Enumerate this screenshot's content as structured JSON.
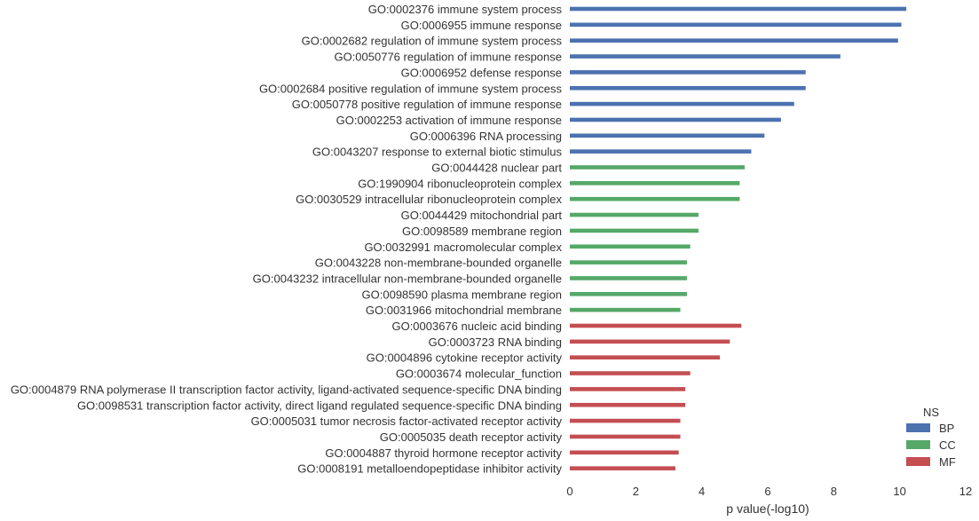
{
  "chart_data": {
    "type": "bar",
    "orientation": "horizontal",
    "xlabel": "p value(-log10)",
    "xlim": [
      0,
      12
    ],
    "xticks": [
      0,
      2,
      4,
      6,
      8,
      10,
      12
    ],
    "grid": false,
    "legend": {
      "title": "NS",
      "placement": "bottom-right",
      "entries": [
        {
          "name": "BP",
          "color": "#4c72b0"
        },
        {
          "name": "CC",
          "color": "#55a868"
        },
        {
          "name": "MF",
          "color": "#c44e52"
        }
      ]
    },
    "categories": [
      "GO:0002376 immune system process",
      "GO:0006955 immune response",
      "GO:0002682 regulation of immune system process",
      "GO:0050776 regulation of immune response",
      "GO:0006952 defense response",
      "GO:0002684 positive regulation of immune system process",
      "GO:0050778 positive regulation of immune response",
      "GO:0002253 activation of immune response",
      "GO:0006396 RNA processing",
      "GO:0043207 response to external biotic stimulus",
      "GO:0044428 nuclear part",
      "GO:1990904 ribonucleoprotein complex",
      "GO:0030529 intracellular ribonucleoprotein complex",
      "GO:0044429 mitochondrial part",
      "GO:0098589 membrane region",
      "GO:0032991 macromolecular complex",
      "GO:0043228 non-membrane-bounded organelle",
      "GO:0043232 intracellular non-membrane-bounded organelle",
      "GO:0098590 plasma membrane region",
      "GO:0031966 mitochondrial membrane",
      "GO:0003676 nucleic acid binding",
      "GO:0003723 RNA binding",
      "GO:0004896 cytokine receptor activity",
      "GO:0003674 molecular_function",
      "GO:0004879 RNA polymerase II transcription factor activity, ligand-activated sequence-specific DNA binding",
      "GO:0098531 transcription factor activity, direct ligand regulated sequence-specific DNA binding",
      "GO:0005031 tumor necrosis factor-activated receptor activity",
      "GO:0005035 death receptor activity",
      "GO:0004887 thyroid hormone receptor activity",
      "GO:0008191 metalloendopeptidase inhibitor activity"
    ],
    "groups": [
      "BP",
      "BP",
      "BP",
      "BP",
      "BP",
      "BP",
      "BP",
      "BP",
      "BP",
      "BP",
      "CC",
      "CC",
      "CC",
      "CC",
      "CC",
      "CC",
      "CC",
      "CC",
      "CC",
      "CC",
      "MF",
      "MF",
      "MF",
      "MF",
      "MF",
      "MF",
      "MF",
      "MF",
      "MF",
      "MF"
    ],
    "values": [
      10.2,
      10.05,
      9.95,
      8.2,
      7.15,
      7.15,
      6.8,
      6.4,
      5.9,
      5.5,
      5.3,
      5.15,
      5.15,
      3.9,
      3.9,
      3.65,
      3.55,
      3.55,
      3.55,
      3.35,
      5.2,
      4.85,
      4.55,
      3.65,
      3.5,
      3.5,
      3.35,
      3.35,
      3.3,
      3.2
    ]
  }
}
